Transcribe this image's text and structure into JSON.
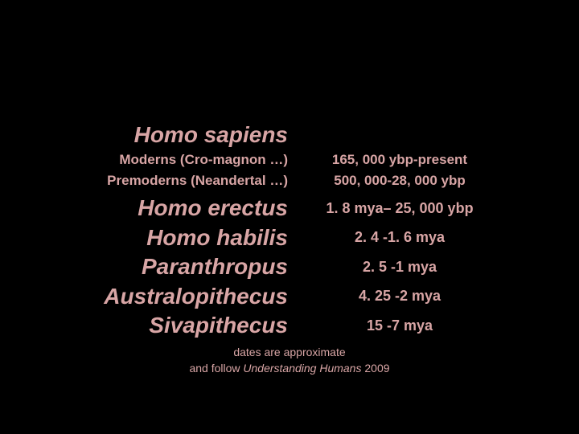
{
  "colors": {
    "background": "#000000",
    "text": "#d8a5a5"
  },
  "species": {
    "sapiens": "Homo sapiens",
    "moderns_label": "Moderns (Cro-magnon …)",
    "moderns_date": "165, 000 ybp-present",
    "premoderns_label": "Premoderns (Neandertal …)",
    "premoderns_date": "500, 000-28, 000 ybp",
    "erectus": "Homo erectus",
    "erectus_date": "1. 8 mya– 25, 000 ybp",
    "habilis": "Homo habilis",
    "habilis_date": "2. 4 -1. 6 mya",
    "paranthropus": "Paranthropus",
    "paranthropus_date": "2. 5 -1 mya",
    "australopithecus": "Australopithecus",
    "australopithecus_date": "4. 25 -2 mya",
    "sivapithecus": "Sivapithecus",
    "sivapithecus_date": "15 -7 mya"
  },
  "footnote": {
    "line1": "dates are approximate",
    "line2_pre": "and follow ",
    "line2_title": "Understanding Humans",
    "line2_post": " 2009"
  }
}
